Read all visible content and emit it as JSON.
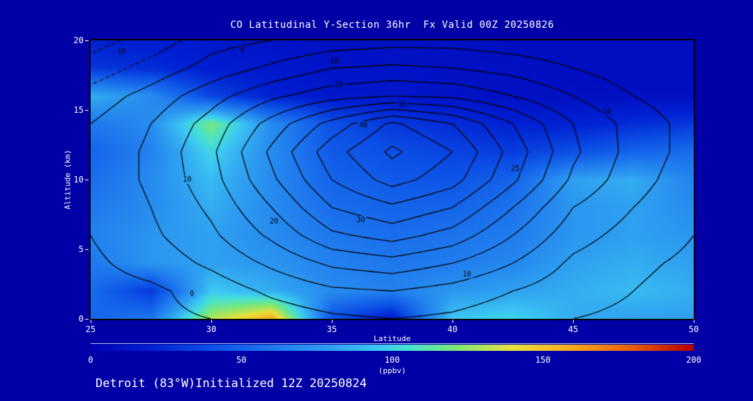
{
  "title": "CO Latitudinal Y-Section 36hr  Fx Valid 00Z 20250826",
  "footer": "Detroit (83°W)Initialized 12Z 20250824",
  "background_color": "#0000A6",
  "text_color": "#FFFFFF",
  "x_axis": {
    "label": "Latitude",
    "min": 25,
    "max": 50,
    "ticks": [
      {
        "value": 25,
        "label": "25"
      },
      {
        "value": 30,
        "label": "30"
      },
      {
        "value": 35,
        "label": "35"
      },
      {
        "value": 40,
        "label": "40"
      },
      {
        "value": 45,
        "label": "45"
      },
      {
        "value": 50,
        "label": "50"
      }
    ]
  },
  "y_axis": {
    "label": "Altitude (km)",
    "min": 0,
    "max": 20,
    "ticks": [
      {
        "value": 0,
        "label": "0"
      },
      {
        "value": 5,
        "label": "5"
      },
      {
        "value": 10,
        "label": "10"
      },
      {
        "value": 15,
        "label": "15"
      },
      {
        "value": 20,
        "label": "20"
      }
    ]
  },
  "colorbar": {
    "unit_label": "(ppbv)",
    "min": 0,
    "max": 200,
    "ticks": [
      {
        "value": 0,
        "label": "0"
      },
      {
        "value": 50,
        "label": "50"
      },
      {
        "value": 100,
        "label": "100"
      },
      {
        "value": 150,
        "label": "150"
      },
      {
        "value": 200,
        "label": "200"
      }
    ]
  },
  "chart_data": {
    "type": "heatmap",
    "subtype": "filled-contour-cross-section-with-line-contours",
    "title": "CO Latitudinal Y-Section 36hr  Fx Valid 00Z 20250826",
    "xlabel": "Latitude",
    "ylabel": "Altitude (km)",
    "units": "ppbv",
    "xlim": [
      25,
      50
    ],
    "ylim": [
      0,
      20
    ],
    "zlim": [
      0,
      200
    ],
    "lat_values": [
      25,
      27.5,
      30,
      32.5,
      35,
      37.5,
      40,
      42.5,
      45,
      47.5,
      50
    ],
    "alt_values": [
      0,
      2,
      4,
      6,
      8,
      10,
      12,
      14,
      16,
      18,
      20
    ],
    "co_fill_ppbv": [
      [
        50,
        60,
        130,
        160,
        40,
        15,
        95,
        100,
        85,
        80,
        80
      ],
      [
        55,
        30,
        95,
        85,
        70,
        65,
        75,
        80,
        85,
        90,
        85
      ],
      [
        60,
        75,
        80,
        75,
        65,
        60,
        62,
        68,
        80,
        85,
        80
      ],
      [
        65,
        75,
        80,
        70,
        60,
        55,
        58,
        62,
        75,
        80,
        75
      ],
      [
        60,
        70,
        85,
        70,
        55,
        50,
        50,
        58,
        75,
        80,
        70
      ],
      [
        55,
        70,
        90,
        70,
        50,
        45,
        42,
        50,
        80,
        85,
        65
      ],
      [
        50,
        65,
        100,
        70,
        45,
        40,
        35,
        32,
        40,
        50,
        55
      ],
      [
        60,
        70,
        120,
        70,
        40,
        30,
        25,
        20,
        20,
        25,
        30
      ],
      [
        85,
        70,
        35,
        20,
        15,
        15,
        12,
        10,
        10,
        10,
        10
      ],
      [
        30,
        25,
        18,
        15,
        12,
        12,
        10,
        10,
        8,
        8,
        8
      ],
      [
        20,
        18,
        15,
        12,
        10,
        10,
        10,
        8,
        8,
        8,
        8
      ]
    ],
    "colormap_stops": [
      [
        0,
        "#0000B4"
      ],
      [
        20,
        "#0020D2"
      ],
      [
        40,
        "#0C50E6"
      ],
      [
        60,
        "#1E78EE"
      ],
      [
        80,
        "#2FA0F0"
      ],
      [
        95,
        "#3CC8F2"
      ],
      [
        105,
        "#46E0D2"
      ],
      [
        120,
        "#78E87A"
      ],
      [
        140,
        "#E8E03C"
      ],
      [
        160,
        "#F5A81E"
      ],
      [
        180,
        "#E85A0C"
      ],
      [
        200,
        "#B40000"
      ]
    ],
    "line_contour_values": [
      [
        -3,
        -1,
        0,
        2,
        4,
        5,
        4,
        2,
        0,
        -1,
        -3
      ],
      [
        -2,
        -1,
        2,
        6,
        9,
        10,
        8,
        5,
        2,
        0,
        -2
      ],
      [
        -1,
        2,
        6,
        11,
        16,
        18,
        15,
        10,
        4,
        1,
        -1
      ],
      [
        0,
        4,
        9,
        16,
        24,
        27,
        23,
        15,
        7,
        3,
        0
      ],
      [
        0,
        5,
        11,
        20,
        30,
        34,
        30,
        20,
        10,
        5,
        1
      ],
      [
        1,
        6,
        13,
        24,
        35,
        42,
        37,
        26,
        14,
        7,
        2
      ],
      [
        1,
        6,
        14,
        26,
        38,
        46,
        40,
        28,
        16,
        8,
        3
      ],
      [
        0,
        5,
        12,
        22,
        32,
        41,
        35,
        25,
        15,
        8,
        3
      ],
      [
        -3,
        2,
        8,
        14,
        18,
        20,
        19,
        15,
        10,
        5,
        2
      ],
      [
        -8,
        -3,
        2,
        6,
        10,
        11,
        10,
        8,
        5,
        2,
        0
      ],
      [
        -12,
        -8,
        -2,
        0,
        2,
        3,
        3,
        2,
        1,
        0,
        0
      ]
    ],
    "line_contour_levels": [
      -10,
      -5,
      0,
      5,
      10,
      15,
      20,
      25,
      30,
      35,
      40,
      45
    ],
    "contour_labels": [
      {
        "text": "-10",
        "lat": 26.2,
        "alt": 19.2
      },
      {
        "text": "0",
        "lat": 31.3,
        "alt": 19.3
      },
      {
        "text": "10",
        "lat": 35.1,
        "alt": 18.5
      },
      {
        "text": "20",
        "lat": 35.3,
        "alt": 16.8
      },
      {
        "text": "30",
        "lat": 37.9,
        "alt": 15.4
      },
      {
        "text": "40",
        "lat": 36.3,
        "alt": 13.9
      },
      {
        "text": "10",
        "lat": 29.0,
        "alt": 10.0
      },
      {
        "text": "20",
        "lat": 32.6,
        "alt": 7.0
      },
      {
        "text": "30",
        "lat": 36.2,
        "alt": 7.1
      },
      {
        "text": "25",
        "lat": 42.6,
        "alt": 10.8
      },
      {
        "text": "10",
        "lat": 46.4,
        "alt": 14.9
      },
      {
        "text": "10",
        "lat": 40.6,
        "alt": 3.2
      },
      {
        "text": "0",
        "lat": 29.2,
        "alt": 1.8
      }
    ]
  }
}
